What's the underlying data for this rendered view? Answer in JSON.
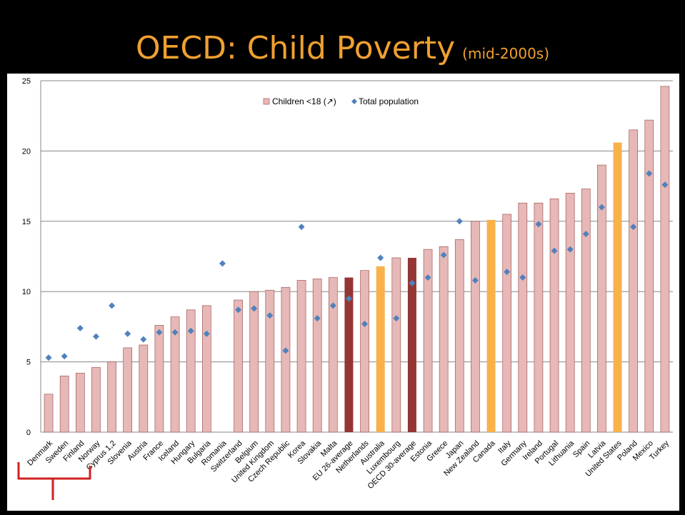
{
  "slide": {
    "title": "OECD:  Child Poverty",
    "subtitle": "(mid-2000s)"
  },
  "colors": {
    "background": "#000000",
    "title": "#f0a030",
    "bar_default": "#e6b8b7",
    "bar_stroke": "#a05a58",
    "bar_average": "#943634",
    "bar_highlight": "#f9b14a",
    "marker": "#4f81bd",
    "grid": "#878787",
    "brace": "#d02020"
  },
  "chart_data": {
    "type": "bar",
    "ylim": [
      0,
      25
    ],
    "yticks": [
      0,
      5,
      10,
      15,
      20,
      25
    ],
    "grid": true,
    "legend_position": "top-center",
    "categories": [
      "Denmark",
      "Sweden",
      "Finland",
      "Norway",
      "Cyprus 1,2",
      "Slovenia",
      "Austria",
      "France",
      "Iceland",
      "Hungary",
      "Bulgaria",
      "Romania",
      "Switzerland",
      "Belgium",
      "United Kingdom",
      "Czech Republic",
      "Korea",
      "Slovakia",
      "Malta",
      "EU 26-average",
      "Netherlands",
      "Australia",
      "Luxembourg",
      "OECD 30-average",
      "Estonia",
      "Greece",
      "Japan",
      "New Zealand",
      "Canada",
      "Italy",
      "Germany",
      "Ireland",
      "Portugal",
      "Lithuania",
      "Spain",
      "Latvia",
      "United States",
      "Poland",
      "Mexico",
      "Turkey"
    ],
    "bar_styles": [
      "default",
      "default",
      "default",
      "default",
      "default",
      "default",
      "default",
      "default",
      "default",
      "default",
      "default",
      "default",
      "default",
      "default",
      "default",
      "default",
      "default",
      "default",
      "default",
      "average",
      "default",
      "highlight",
      "default",
      "average",
      "default",
      "default",
      "default",
      "default",
      "highlight",
      "default",
      "default",
      "default",
      "default",
      "default",
      "default",
      "default",
      "highlight",
      "default",
      "default",
      "default"
    ],
    "series": [
      {
        "name": "Children <18 (↗)",
        "kind": "bar",
        "values": [
          2.7,
          4.0,
          4.2,
          4.6,
          5.0,
          6.0,
          6.2,
          7.6,
          8.2,
          8.7,
          9.0,
          null,
          9.4,
          10.0,
          10.1,
          10.3,
          10.8,
          10.9,
          11.0,
          11.0,
          11.5,
          11.8,
          12.4,
          12.4,
          13.0,
          13.2,
          13.7,
          15.0,
          15.1,
          15.5,
          16.3,
          16.3,
          16.6,
          17.0,
          17.3,
          19.0,
          20.6,
          21.5,
          22.2,
          24.6
        ]
      },
      {
        "name": "Total population",
        "kind": "marker",
        "values": [
          5.3,
          5.4,
          7.4,
          6.8,
          9.0,
          7.0,
          6.6,
          7.1,
          7.1,
          7.2,
          7.0,
          12.0,
          8.7,
          8.8,
          8.3,
          5.8,
          14.6,
          8.1,
          9.0,
          9.5,
          7.7,
          12.4,
          8.1,
          10.6,
          11.0,
          12.6,
          15.0,
          10.8,
          null,
          11.4,
          11.0,
          14.8,
          12.9,
          13.0,
          14.1,
          16.0,
          null,
          14.6,
          18.4,
          17.6
        ]
      }
    ]
  }
}
